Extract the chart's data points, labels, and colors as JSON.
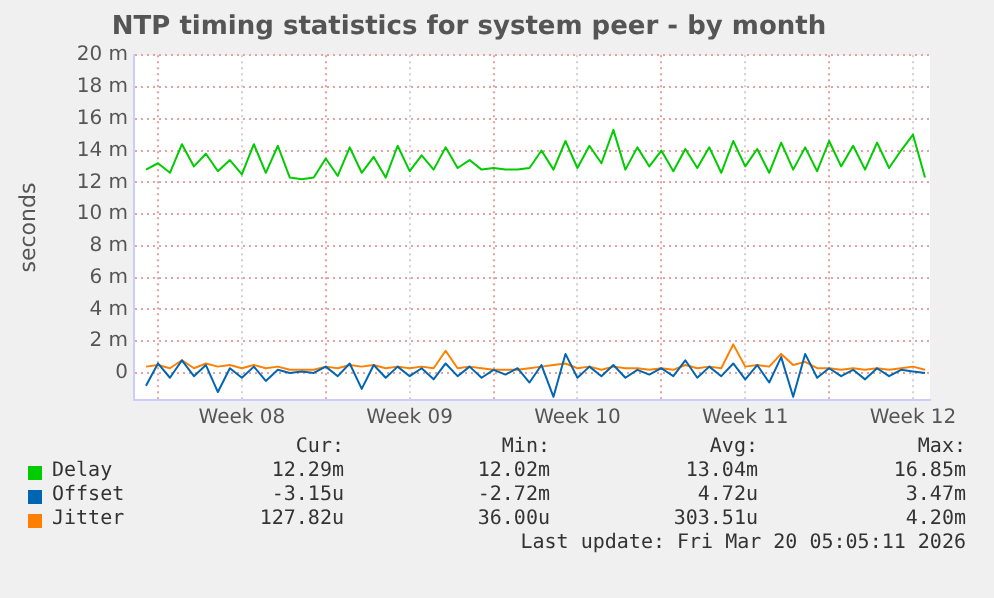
{
  "chart_data": {
    "type": "line",
    "title": "NTP timing statistics for system peer - by month",
    "ylabel": "seconds",
    "x": [
      "2026-02-15T12:00",
      "2026-02-16T00:00",
      "2026-02-16T12:00",
      "2026-02-17T00:00",
      "2026-02-17T12:00",
      "2026-02-18T00:00",
      "2026-02-18T12:00",
      "2026-02-19T00:00",
      "2026-02-19T12:00",
      "2026-02-20T00:00",
      "2026-02-20T12:00",
      "2026-02-21T00:00",
      "2026-02-21T12:00",
      "2026-02-22T00:00",
      "2026-02-22T12:00",
      "2026-02-23T00:00",
      "2026-02-23T12:00",
      "2026-02-24T00:00",
      "2026-02-24T12:00",
      "2026-02-25T00:00",
      "2026-02-25T12:00",
      "2026-02-26T00:00",
      "2026-02-26T12:00",
      "2026-02-27T00:00",
      "2026-02-27T12:00",
      "2026-02-28T00:00",
      "2026-02-28T12:00",
      "2026-03-01T00:00",
      "2026-03-01T12:00",
      "2026-03-02T00:00",
      "2026-03-02T12:00",
      "2026-03-03T00:00",
      "2026-03-03T12:00",
      "2026-03-04T00:00",
      "2026-03-04T12:00",
      "2026-03-05T00:00",
      "2026-03-05T12:00",
      "2026-03-06T00:00",
      "2026-03-06T12:00",
      "2026-03-07T00:00",
      "2026-03-07T12:00",
      "2026-03-08T00:00",
      "2026-03-08T12:00",
      "2026-03-09T00:00",
      "2026-03-09T12:00",
      "2026-03-10T00:00",
      "2026-03-10T12:00",
      "2026-03-11T00:00",
      "2026-03-11T12:00",
      "2026-03-12T00:00",
      "2026-03-12T12:00",
      "2026-03-13T00:00",
      "2026-03-13T12:00",
      "2026-03-14T00:00",
      "2026-03-14T12:00",
      "2026-03-15T00:00",
      "2026-03-15T12:00",
      "2026-03-16T00:00",
      "2026-03-16T12:00",
      "2026-03-17T00:00",
      "2026-03-17T12:00",
      "2026-03-18T00:00",
      "2026-03-18T12:00",
      "2026-03-19T00:00",
      "2026-03-19T12:00",
      "2026-03-20T00:00"
    ],
    "series": [
      {
        "name": "Delay",
        "color": "#00cc00",
        "values": [
          12.8,
          13.2,
          12.6,
          14.4,
          13.0,
          13.8,
          12.7,
          13.4,
          12.5,
          14.4,
          12.6,
          14.3,
          12.3,
          12.2,
          12.3,
          13.5,
          12.4,
          14.2,
          12.6,
          13.6,
          12.3,
          14.3,
          12.7,
          13.7,
          12.8,
          14.2,
          12.9,
          13.4,
          12.8,
          12.9,
          12.8,
          12.8,
          12.9,
          14.0,
          12.8,
          14.6,
          12.9,
          14.3,
          13.2,
          15.3,
          12.8,
          14.2,
          13.0,
          14.0,
          12.7,
          14.1,
          12.9,
          14.2,
          12.6,
          14.6,
          13.0,
          14.1,
          12.6,
          14.5,
          12.8,
          14.2,
          12.7,
          14.6,
          13.0,
          14.3,
          12.8,
          14.5,
          12.9,
          14.0,
          15.0,
          12.3
        ]
      },
      {
        "name": "Offset",
        "color": "#0066b3",
        "values": [
          -0.8,
          0.6,
          -0.3,
          0.8,
          -0.2,
          0.5,
          -1.2,
          0.3,
          -0.3,
          0.4,
          -0.5,
          0.2,
          0.0,
          0.1,
          0.0,
          0.4,
          -0.2,
          0.6,
          -1.0,
          0.5,
          -0.3,
          0.4,
          -0.2,
          0.3,
          -0.4,
          0.6,
          -0.2,
          0.4,
          -0.3,
          0.2,
          -0.1,
          0.3,
          -0.6,
          0.5,
          -1.5,
          1.2,
          -0.3,
          0.4,
          -0.2,
          0.5,
          -0.3,
          0.2,
          -0.1,
          0.3,
          -0.2,
          0.8,
          -0.3,
          0.4,
          -0.2,
          0.6,
          -0.4,
          0.5,
          -0.6,
          1.0,
          -1.5,
          1.2,
          -0.3,
          0.3,
          -0.2,
          0.2,
          -0.4,
          0.3,
          -0.2,
          0.2,
          0.1,
          0.0
        ]
      },
      {
        "name": "Jitter",
        "color": "#ff8000",
        "values": [
          0.4,
          0.5,
          0.3,
          0.8,
          0.3,
          0.6,
          0.4,
          0.5,
          0.3,
          0.5,
          0.3,
          0.4,
          0.2,
          0.2,
          0.2,
          0.4,
          0.3,
          0.5,
          0.4,
          0.5,
          0.3,
          0.4,
          0.3,
          0.4,
          0.3,
          1.4,
          0.3,
          0.4,
          0.3,
          0.2,
          0.2,
          0.2,
          0.3,
          0.4,
          0.5,
          0.6,
          0.3,
          0.4,
          0.2,
          0.4,
          0.3,
          0.3,
          0.2,
          0.3,
          0.2,
          0.5,
          0.3,
          0.4,
          0.3,
          1.8,
          0.4,
          0.5,
          0.4,
          1.2,
          0.5,
          0.7,
          0.3,
          0.3,
          0.2,
          0.3,
          0.2,
          0.3,
          0.2,
          0.3,
          0.4,
          0.2
        ]
      }
    ],
    "xlim": [
      "2026-02-15T00:00",
      "2026-03-20T05:00"
    ],
    "xticks": [
      {
        "value": "2026-02-16T00:00",
        "label": null
      },
      {
        "value": "2026-02-19T12:00",
        "label": "Week 08"
      },
      {
        "value": "2026-02-23T00:00",
        "label": null
      },
      {
        "value": "2026-02-26T12:00",
        "label": "Week 09"
      },
      {
        "value": "2026-03-02T00:00",
        "label": null
      },
      {
        "value": "2026-03-05T12:00",
        "label": "Week 10"
      },
      {
        "value": "2026-03-09T00:00",
        "label": null
      },
      {
        "value": "2026-03-12T12:00",
        "label": "Week 11"
      },
      {
        "value": "2026-03-16T00:00",
        "label": null
      },
      {
        "value": "2026-03-19T12:00",
        "label": "Week 12"
      }
    ],
    "ylim": [
      -1.7,
      20
    ],
    "yticks": [
      0,
      {
        "value": 2,
        "label": "2 m"
      },
      {
        "value": 4,
        "label": "4 m"
      },
      {
        "value": 6,
        "label": "6 m"
      },
      {
        "value": 8,
        "label": "8 m"
      },
      {
        "value": 10,
        "label": "10 m"
      },
      {
        "value": 12,
        "label": "12 m"
      },
      {
        "value": 14,
        "label": "14 m"
      },
      {
        "value": 16,
        "label": "16 m"
      },
      {
        "value": 18,
        "label": "18 m"
      },
      {
        "value": 20,
        "label": "20 m"
      }
    ],
    "grid": true,
    "legend": "bottom",
    "marker": "none",
    "line_style": "solid",
    "annotations": [
      "Cur:",
      "Min:",
      "Avg:",
      "Max:",
      "12.29m",
      "12.02m",
      "13.04m",
      "16.85m",
      "-3.15u",
      "-2.72m",
      "4.72u",
      "3.47m",
      "127.82u",
      "36.00u",
      "303.51u",
      "4.20m",
      "Last update: Fri Mar 20 05:05:11 2026"
    ]
  }
}
